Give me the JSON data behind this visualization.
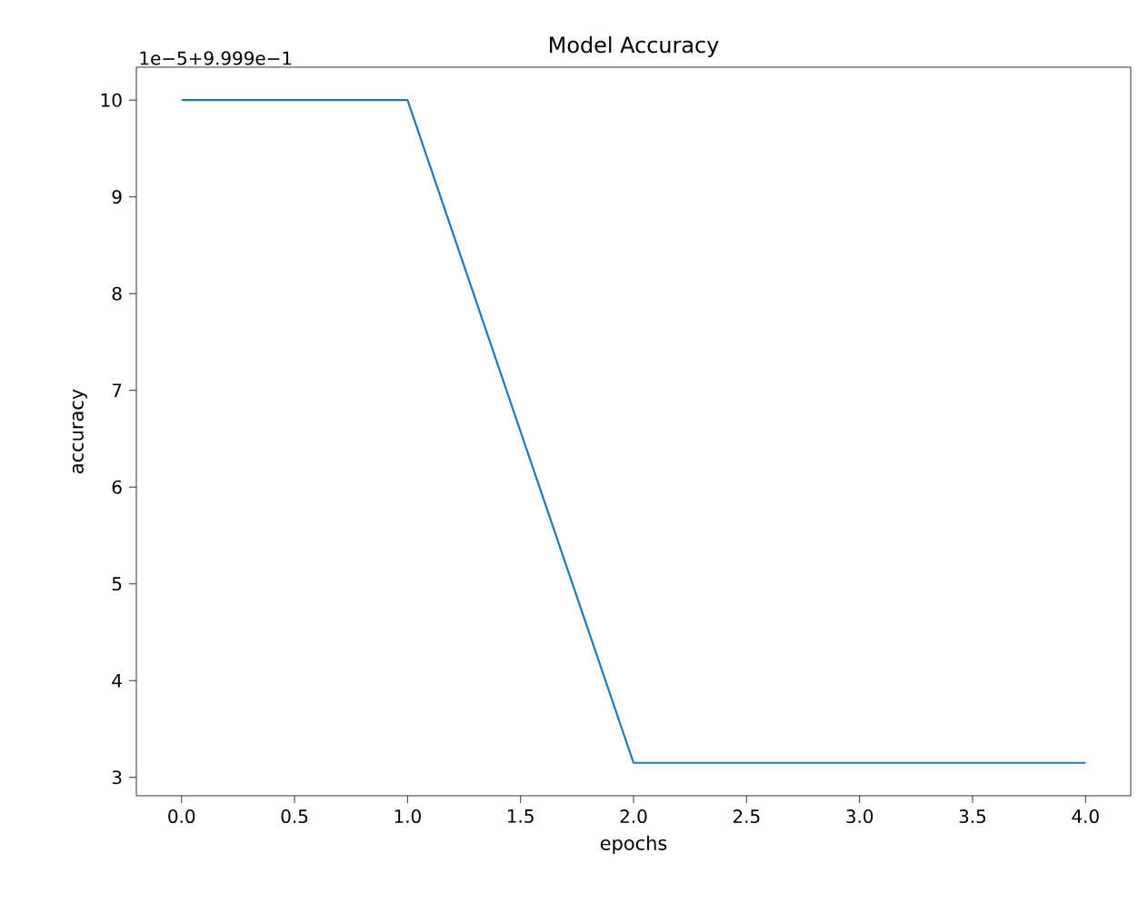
{
  "chart_data": {
    "type": "line",
    "title": "Model Accuracy",
    "xlabel": "epochs",
    "ylabel": "accuracy",
    "annotations": [
      "1e−5+9.999e−1"
    ],
    "x": [
      0,
      1,
      2,
      3,
      4
    ],
    "series": [
      {
        "color": "#1f77b4",
        "values": [
          10,
          10,
          3.15,
          3.15,
          3.15
        ]
      }
    ],
    "xlim": [
      -0.2,
      4.2
    ],
    "ylim": [
      2.81,
      10.34
    ],
    "xticks": [
      {
        "value": 0,
        "label": "0.0"
      },
      {
        "value": 0.5,
        "label": "0.5"
      },
      {
        "value": 1,
        "label": "1.0"
      },
      {
        "value": 1.5,
        "label": "1.5"
      },
      {
        "value": 2,
        "label": "2.0"
      },
      {
        "value": 2.5,
        "label": "2.5"
      },
      {
        "value": 3,
        "label": "3.0"
      },
      {
        "value": 3.5,
        "label": "3.5"
      },
      {
        "value": 4,
        "label": "4.0"
      }
    ],
    "yticks": [
      3,
      4,
      5,
      6,
      7,
      8,
      9,
      10
    ],
    "grid": false
  }
}
